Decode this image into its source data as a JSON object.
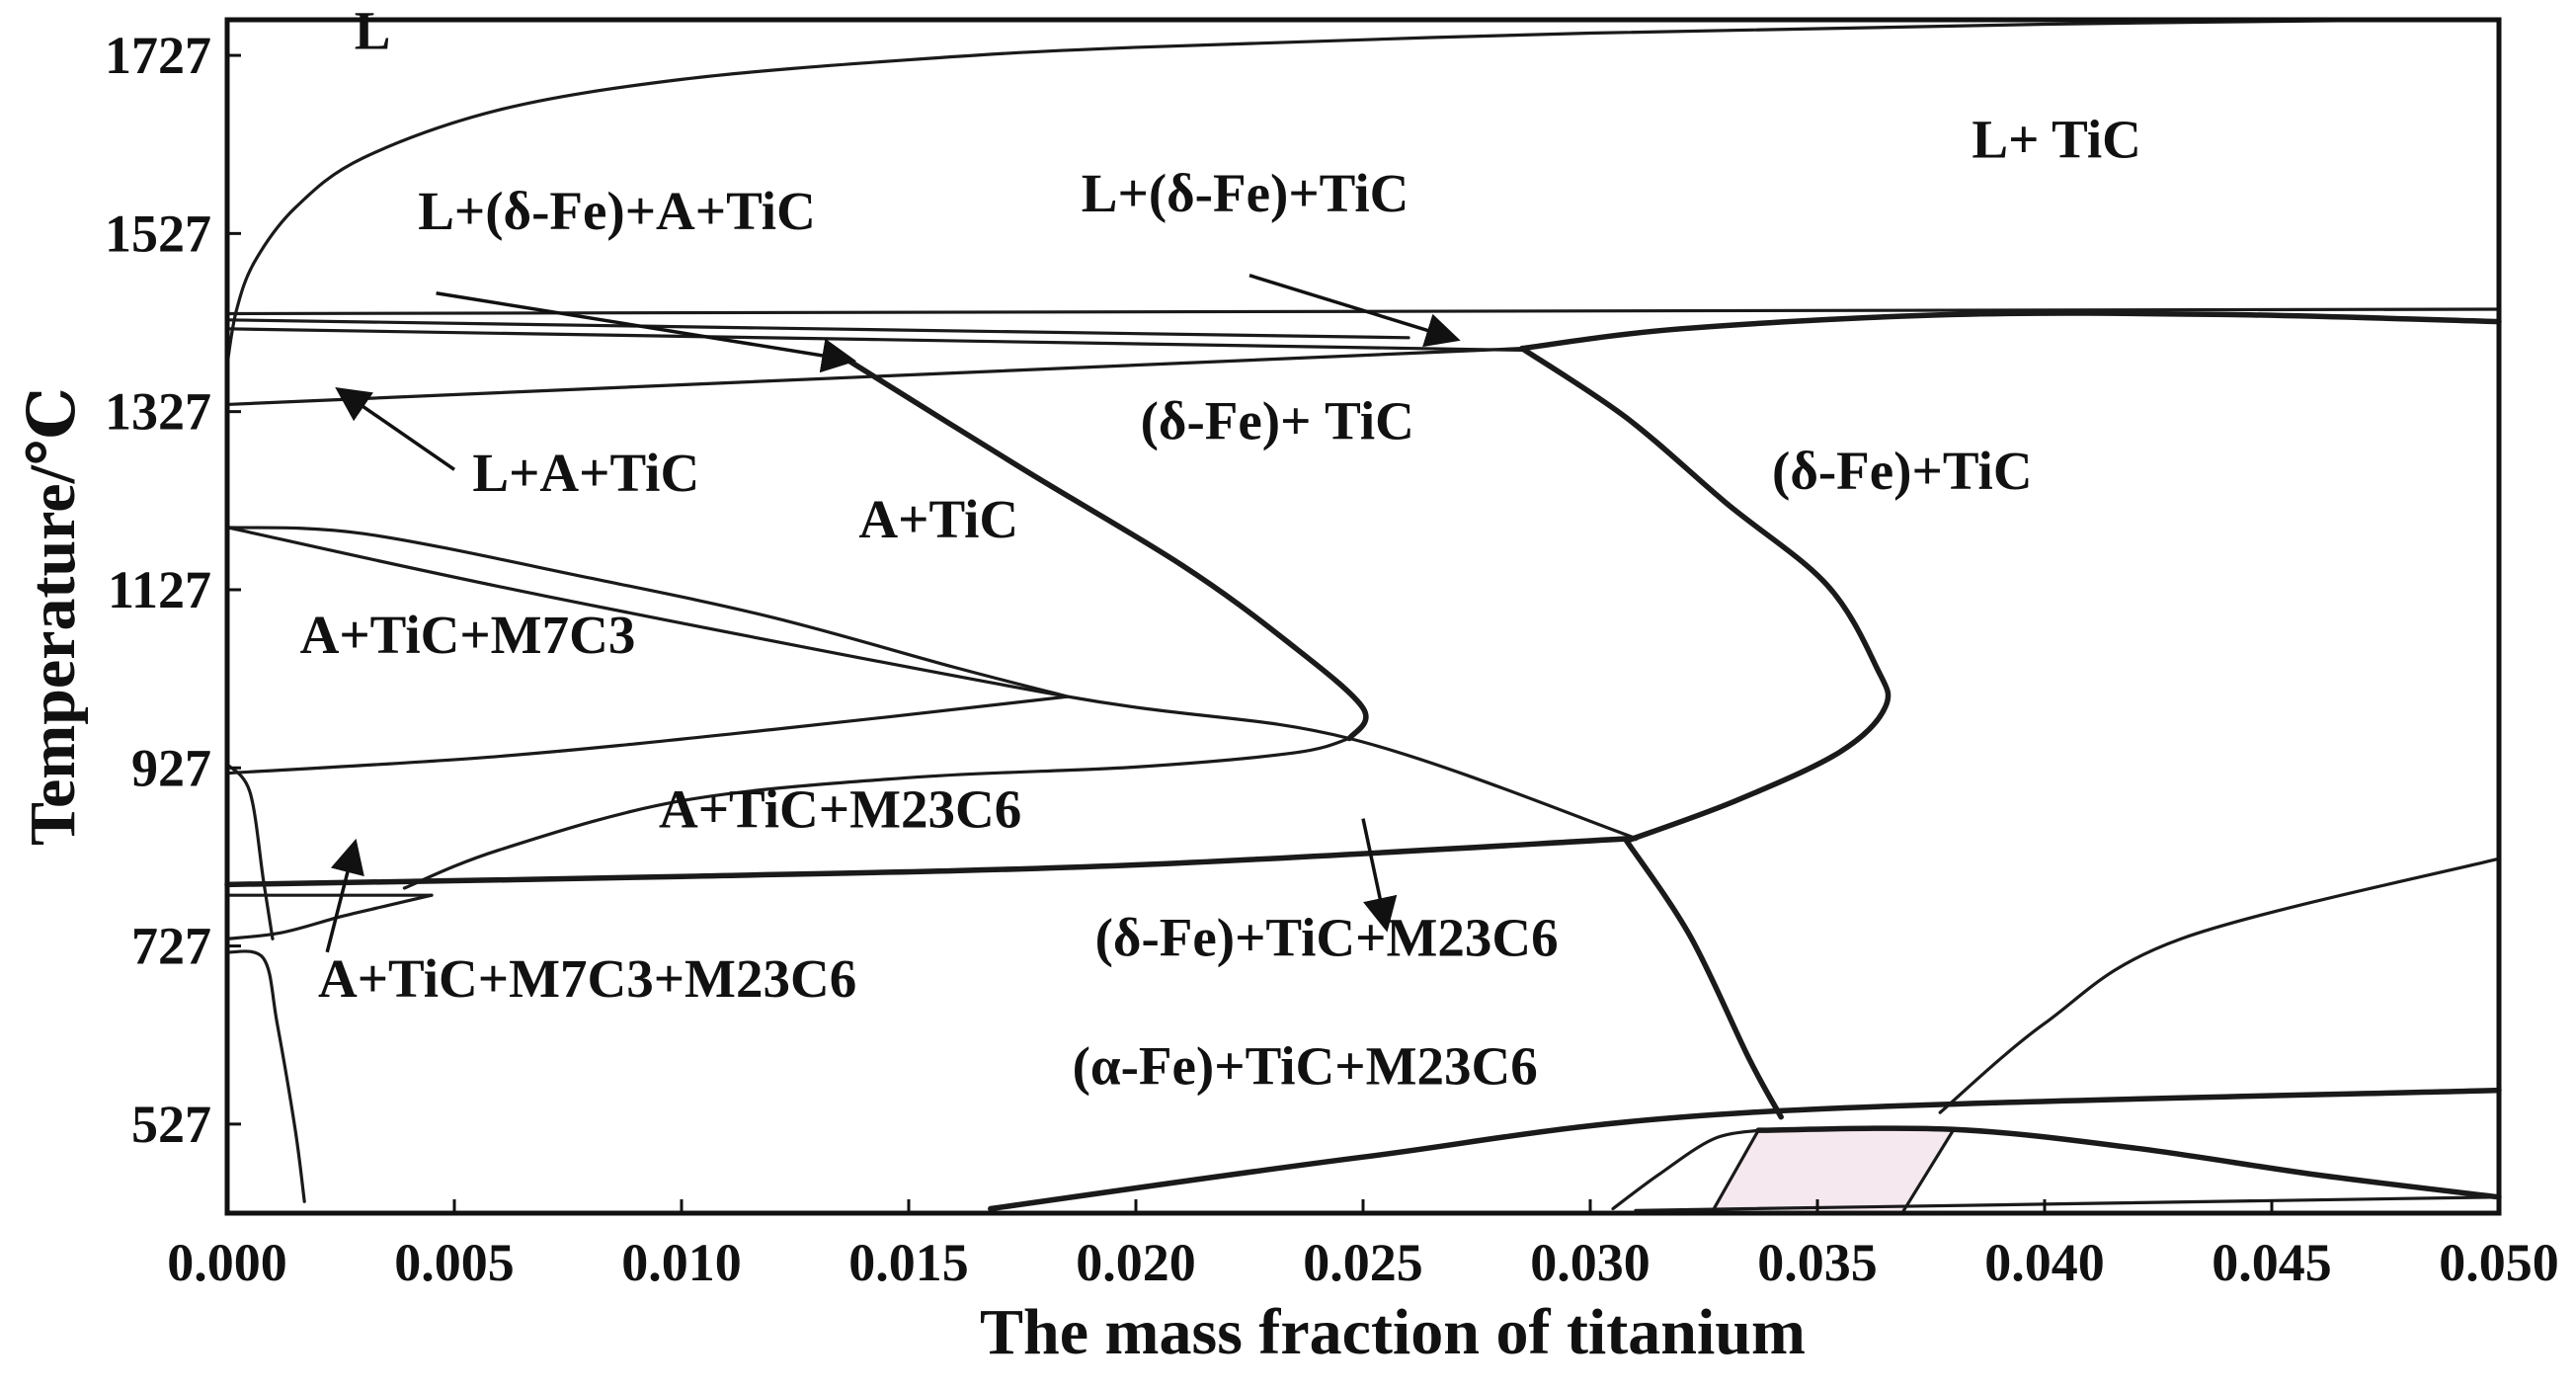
{
  "chart_data": {
    "type": "phase-diagram",
    "title": "",
    "xlabel": "The mass fraction of  titanium",
    "ylabel": "Temperature/℃",
    "xlim": [
      0.0,
      0.05
    ],
    "ylim": [
      427,
      1767
    ],
    "x_ticks": [
      0.0,
      0.005,
      0.01,
      0.015,
      0.02,
      0.025,
      0.03,
      0.035,
      0.04,
      0.045,
      0.05
    ],
    "x_tick_labels": [
      "0.000",
      "0.005",
      "0.010",
      "0.015",
      "0.020",
      "0.025",
      "0.030",
      "0.035",
      "0.040",
      "0.045",
      "0.050"
    ],
    "y_ticks": [
      527,
      727,
      927,
      1127,
      1327,
      1527,
      1727
    ],
    "y_tick_labels": [
      "527",
      "727",
      "927",
      "1127",
      "1327",
      "1527",
      "1727"
    ],
    "regions": [
      {
        "name": "region-L",
        "label": "L",
        "x": 0.0028,
        "t": 1734
      },
      {
        "name": "region-L-TiC",
        "label": "L+ TiC",
        "x": 0.0384,
        "t": 1612
      },
      {
        "name": "region-L-dFe-A-TiC",
        "label": "L+(δ-Fe)+A+TiC",
        "x": 0.0042,
        "t": 1532
      },
      {
        "name": "region-L-dFe-TiC",
        "label": "L+(δ-Fe)+TiC",
        "x": 0.0188,
        "t": 1552
      },
      {
        "name": "region-L-A-TiC",
        "label": "L+A+TiC",
        "x": 0.0054,
        "t": 1238
      },
      {
        "name": "region-dFe-TiC-mid",
        "label": "(δ-Fe)+ TiC",
        "x": 0.0201,
        "t": 1296
      },
      {
        "name": "region-dFe-TiC-right",
        "label": "(δ-Fe)+TiC",
        "x": 0.034,
        "t": 1240
      },
      {
        "name": "region-A-TiC",
        "label": "A+TiC",
        "x": 0.0139,
        "t": 1186
      },
      {
        "name": "region-A-TiC-M7C3",
        "label": "A+TiC+M7C3",
        "x": 0.0016,
        "t": 1056
      },
      {
        "name": "region-A-TiC-M23C6",
        "label": "A+TiC+M23C6",
        "x": 0.0095,
        "t": 860
      },
      {
        "name": "region-dFe-TiC-M23C6",
        "label": "(δ-Fe)+TiC+M23C6",
        "x": 0.0191,
        "t": 716
      },
      {
        "name": "region-A-TiC-M7C3-M23C6",
        "label": "A+TiC+M7C3+M23C6",
        "x": 0.002,
        "t": 670
      },
      {
        "name": "region-aFe-TiC-M23C6",
        "label": "(α-Fe)+TiC+M23C6",
        "x": 0.0186,
        "t": 572
      }
    ],
    "boundaries": [
      {
        "name": "liquidus-curve",
        "points": [
          [
            0.0,
            1380
          ],
          [
            0.0002,
            1440
          ],
          [
            0.0006,
            1495
          ],
          [
            0.0015,
            1556
          ],
          [
            0.003,
            1612
          ],
          [
            0.006,
            1666
          ],
          [
            0.01,
            1700
          ],
          [
            0.015,
            1722
          ],
          [
            0.02,
            1736
          ],
          [
            0.03,
            1752
          ],
          [
            0.04,
            1762
          ],
          [
            0.05,
            1768
          ]
        ]
      },
      {
        "name": "line-1437-full",
        "points": [
          [
            0.0,
            1437
          ],
          [
            0.05,
            1442
          ]
        ]
      },
      {
        "name": "line-1420-short",
        "points": [
          [
            0.0,
            1430
          ],
          [
            0.026,
            1410
          ]
        ]
      },
      {
        "name": "line-1410-upper",
        "points": [
          [
            0.0,
            1420
          ],
          [
            0.0285,
            1396
          ]
        ]
      },
      {
        "name": "line-1340",
        "points": [
          [
            0.0,
            1335
          ],
          [
            0.0285,
            1398
          ]
        ]
      },
      {
        "name": "dfe-cap",
        "points": [
          [
            0.0285,
            1398
          ],
          [
            0.032,
            1420
          ],
          [
            0.038,
            1436
          ],
          [
            0.044,
            1436
          ],
          [
            0.05,
            1428
          ]
        ]
      },
      {
        "name": "a-tic-boundary",
        "points": [
          [
            0.0135,
            1390
          ],
          [
            0.0175,
            1263
          ],
          [
            0.021,
            1155
          ],
          [
            0.0233,
            1070
          ],
          [
            0.025,
            994
          ],
          [
            0.0247,
            960
          ]
        ]
      },
      {
        "name": "dfe-boundary",
        "points": [
          [
            0.0285,
            1398
          ],
          [
            0.0308,
            1320
          ],
          [
            0.033,
            1224
          ],
          [
            0.0352,
            1133
          ],
          [
            0.0363,
            1040
          ],
          [
            0.0365,
            996
          ],
          [
            0.0355,
            945
          ],
          [
            0.0332,
            890
          ],
          [
            0.0308,
            845
          ]
        ]
      },
      {
        "name": "m7c3-dome",
        "points": [
          [
            0.0,
            1197
          ],
          [
            0.003,
            1190
          ],
          [
            0.008,
            1140
          ],
          [
            0.012,
            1096
          ],
          [
            0.016,
            1040
          ],
          [
            0.0185,
            1007
          ]
        ]
      },
      {
        "name": "m7c3-lower",
        "points": [
          [
            0.0,
            921
          ],
          [
            0.006,
            940
          ],
          [
            0.012,
            970
          ],
          [
            0.0185,
            1007
          ]
        ]
      },
      {
        "name": "m23c6-dome",
        "points": [
          [
            0.0039,
            792
          ],
          [
            0.006,
            835
          ],
          [
            0.01,
            890
          ],
          [
            0.015,
            916
          ],
          [
            0.02,
            928
          ],
          [
            0.0235,
            944
          ],
          [
            0.0247,
            960
          ]
        ]
      },
      {
        "name": "tie-line",
        "points": [
          [
            0.0,
            1197
          ],
          [
            0.007,
            1120
          ],
          [
            0.0185,
            1007
          ],
          [
            0.0247,
            960
          ],
          [
            0.031,
            848
          ]
        ]
      },
      {
        "name": "eutectoid-line-1",
        "points": [
          [
            0.0,
            796
          ],
          [
            0.01,
            805
          ],
          [
            0.02,
            818
          ],
          [
            0.031,
            848
          ]
        ]
      },
      {
        "name": "eutectoid-line-2",
        "points": [
          [
            0.0,
            784
          ],
          [
            0.0045,
            784
          ]
        ]
      },
      {
        "name": "lower-left-arc",
        "points": [
          [
            0.0,
            735
          ],
          [
            0.0012,
            742
          ],
          [
            0.0025,
            760
          ],
          [
            0.0035,
            772
          ],
          [
            0.0045,
            784
          ]
        ]
      },
      {
        "name": "left-vertical",
        "points": [
          [
            0.0,
            720
          ],
          [
            0.0008,
            713
          ],
          [
            0.0011,
            640
          ],
          [
            0.0015,
            520
          ],
          [
            0.0017,
            440
          ]
        ]
      },
      {
        "name": "left-vertical-2",
        "points": [
          [
            0.0,
            931
          ],
          [
            0.0005,
            900
          ],
          [
            0.0008,
            800
          ],
          [
            0.001,
            735
          ]
        ]
      },
      {
        "name": "alpha-boundary",
        "points": [
          [
            0.0308,
            845
          ],
          [
            0.0322,
            738
          ],
          [
            0.0335,
            600
          ],
          [
            0.0342,
            535
          ]
        ]
      },
      {
        "name": "line-540",
        "points": [
          [
            0.0168,
            432
          ],
          [
            0.025,
            490
          ],
          [
            0.0335,
            540
          ],
          [
            0.05,
            565
          ]
        ]
      },
      {
        "name": "line-520",
        "points": [
          [
            0.0337,
            520
          ],
          [
            0.038,
            521
          ],
          [
            0.042,
            500
          ],
          [
            0.046,
            470
          ],
          [
            0.05,
            445
          ]
        ]
      },
      {
        "name": "right-curve",
        "points": [
          [
            0.0377,
            540
          ],
          [
            0.04,
            640
          ],
          [
            0.043,
            735
          ],
          [
            0.05,
            825
          ]
        ]
      },
      {
        "name": "bottom-arc",
        "points": [
          [
            0.0305,
            432
          ],
          [
            0.0315,
            470
          ],
          [
            0.0327,
            510
          ],
          [
            0.0337,
            520
          ]
        ]
      },
      {
        "name": "bottom-line",
        "points": [
          [
            0.031,
            430
          ],
          [
            0.05,
            445
          ]
        ]
      },
      {
        "name": "small-left-wall",
        "points": [
          [
            0.0327,
            430
          ],
          [
            0.0337,
            520
          ]
        ]
      },
      {
        "name": "small-right-wall",
        "points": [
          [
            0.0369,
            430
          ],
          [
            0.038,
            521
          ]
        ]
      }
    ],
    "arrows": [
      {
        "name": "arrow-L-dFe-A-TiC",
        "from": [
          0.0046,
          1460
        ],
        "to": [
          0.0137,
          1385
        ]
      },
      {
        "name": "arrow-L-dFe-TiC",
        "from": [
          0.0225,
          1480
        ],
        "to": [
          0.027,
          1409
        ]
      },
      {
        "name": "arrow-L-A-TiC",
        "from": [
          0.005,
          1262
        ],
        "to": [
          0.0025,
          1350
        ]
      },
      {
        "name": "arrow-dFe-TiC-M23C6",
        "from": [
          0.025,
          870
        ],
        "to": [
          0.0255,
          750
        ]
      },
      {
        "name": "arrow-A-TiC-M7C3-M23C6",
        "from": [
          0.0022,
          720
        ],
        "to": [
          0.0028,
          840
        ]
      }
    ],
    "shaded_region": {
      "name": "shaded-phase",
      "color": "#f6e8ef",
      "points": [
        [
          0.0327,
          430
        ],
        [
          0.0337,
          520
        ],
        [
          0.038,
          521
        ],
        [
          0.0369,
          430
        ]
      ]
    }
  }
}
